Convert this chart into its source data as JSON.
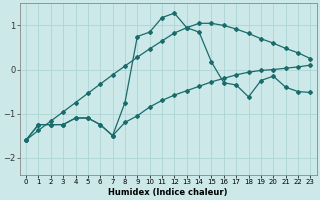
{
  "xlabel": "Humidex (Indice chaleur)",
  "bg_color": "#cce8e8",
  "grid_color": "#aed4d4",
  "line_color": "#1a6b6b",
  "xlim": [
    -0.5,
    23.5
  ],
  "ylim": [
    -2.4,
    1.5
  ],
  "x": [
    0,
    1,
    2,
    3,
    4,
    5,
    6,
    7,
    8,
    9,
    10,
    11,
    12,
    13,
    14,
    15,
    16,
    17,
    18,
    19,
    20,
    21,
    22,
    23
  ],
  "y_main": [
    -1.6,
    -1.25,
    -1.25,
    -1.25,
    -1.1,
    -1.1,
    -1.25,
    -1.5,
    -0.75,
    0.75,
    0.85,
    1.18,
    1.28,
    0.95,
    0.85,
    0.17,
    -0.3,
    -0.35,
    -0.62,
    -0.25,
    -0.15,
    -0.4,
    -0.5,
    -0.52
  ],
  "y_linear": [
    -1.6,
    -1.38,
    -1.17,
    -0.96,
    -0.75,
    -0.54,
    -0.33,
    -0.12,
    0.08,
    0.28,
    0.47,
    0.65,
    0.83,
    0.95,
    1.05,
    1.05,
    1.0,
    0.92,
    0.82,
    0.7,
    0.6,
    0.48,
    0.38,
    0.25
  ],
  "y_smooth": [
    -1.6,
    -1.25,
    -1.25,
    -1.25,
    -1.1,
    -1.1,
    -1.25,
    -1.5,
    -1.2,
    -1.05,
    -0.85,
    -0.7,
    -0.58,
    -0.48,
    -0.38,
    -0.28,
    -0.2,
    -0.12,
    -0.06,
    -0.02,
    0.0,
    0.03,
    0.06,
    0.1
  ],
  "yticks": [
    -2,
    -1,
    0,
    1
  ],
  "xtick_labels": [
    "0",
    "1",
    "2",
    "3",
    "4",
    "5",
    "6",
    "7",
    "8",
    "9",
    "10",
    "11",
    "12",
    "13",
    "14",
    "15",
    "16",
    "17",
    "18",
    "19",
    "20",
    "21",
    "22",
    "23"
  ]
}
